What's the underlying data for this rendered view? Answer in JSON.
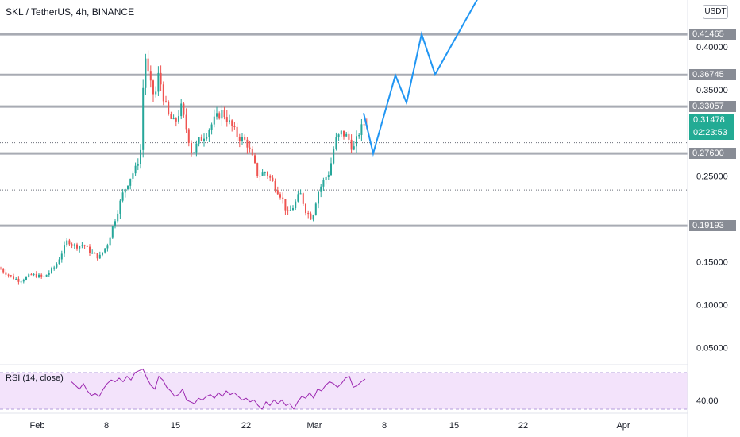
{
  "header": {
    "title": "SKL / TetherUS, 4h, BINANCE",
    "currency": "USDT"
  },
  "rsi": {
    "label": "RSI (14, close)",
    "axis_label": "40.00"
  },
  "last_price": {
    "value": "0.31478",
    "countdown": "02:23:53",
    "color": "#22ab94"
  },
  "colors": {
    "up": "#26a69a",
    "down": "#ef5350",
    "projection": "#2196f3",
    "level": "#a8abb3",
    "rsi_line": "#9c27b0",
    "rsi_band": "#f3e3fb"
  },
  "chart_data": {
    "type": "candlestick",
    "title": "SKL / TetherUS, 4h, BINANCE",
    "x_tick_labels": [
      "Feb",
      "8",
      "15",
      "22",
      "Mar",
      "8",
      "15",
      "22",
      "Apr"
    ],
    "y_tick_labels": [
      "0.05000",
      "0.10000",
      "0.15000",
      "0.25000",
      "0.35000",
      "0.40000"
    ],
    "ylim": [
      0.02,
      0.45
    ],
    "levels": [
      {
        "label": "0.41465",
        "value": 0.41465
      },
      {
        "label": "0.36745",
        "value": 0.36745
      },
      {
        "label": "0.33057",
        "value": 0.33057
      },
      {
        "label": "0.27600",
        "value": 0.276
      },
      {
        "label": "0.19193",
        "value": 0.19193
      }
    ],
    "dotted_levels": [
      0.2885,
      0.2335
    ],
    "price_path": [
      [
        0,
        0.142
      ],
      [
        15,
        0.132
      ],
      [
        25,
        0.128
      ],
      [
        40,
        0.135
      ],
      [
        55,
        0.132
      ],
      [
        70,
        0.145
      ],
      [
        85,
        0.175
      ],
      [
        95,
        0.168
      ],
      [
        105,
        0.17
      ],
      [
        115,
        0.16
      ],
      [
        125,
        0.155
      ],
      [
        135,
        0.17
      ],
      [
        145,
        0.2
      ],
      [
        155,
        0.23
      ],
      [
        165,
        0.25
      ],
      [
        172,
        0.26
      ],
      [
        177,
        0.28
      ],
      [
        180,
        0.35
      ],
      [
        183,
        0.39
      ],
      [
        188,
        0.36
      ],
      [
        195,
        0.34
      ],
      [
        200,
        0.37
      ],
      [
        205,
        0.345
      ],
      [
        212,
        0.32
      ],
      [
        220,
        0.31
      ],
      [
        228,
        0.33
      ],
      [
        236,
        0.3
      ],
      [
        242,
        0.275
      ],
      [
        250,
        0.29
      ],
      [
        260,
        0.3
      ],
      [
        270,
        0.315
      ],
      [
        280,
        0.325
      ],
      [
        290,
        0.31
      ],
      [
        300,
        0.295
      ],
      [
        310,
        0.29
      ],
      [
        318,
        0.27
      ],
      [
        325,
        0.25
      ],
      [
        335,
        0.255
      ],
      [
        345,
        0.24
      ],
      [
        355,
        0.225
      ],
      [
        362,
        0.205
      ],
      [
        370,
        0.215
      ],
      [
        378,
        0.23
      ],
      [
        385,
        0.21
      ],
      [
        393,
        0.2
      ],
      [
        400,
        0.23
      ],
      [
        408,
        0.245
      ],
      [
        415,
        0.255
      ],
      [
        422,
        0.29
      ],
      [
        430,
        0.3
      ],
      [
        438,
        0.295
      ],
      [
        445,
        0.28
      ],
      [
        452,
        0.3
      ],
      [
        458,
        0.31
      ],
      [
        464,
        0.315
      ]
    ],
    "projection_path": [
      [
        458,
        0.323
      ],
      [
        470,
        0.276
      ],
      [
        498,
        0.367
      ],
      [
        512,
        0.335
      ],
      [
        531,
        0.415
      ],
      [
        548,
        0.368
      ],
      [
        604,
        0.46
      ]
    ],
    "rsi": {
      "label": "RSI (14, close)",
      "band_upper": 70,
      "band_lower": 30,
      "axis_value": 40.0,
      "series": [
        [
          90,
          60
        ],
        [
          95,
          56
        ],
        [
          100,
          52
        ],
        [
          105,
          58
        ],
        [
          110,
          50
        ],
        [
          115,
          45
        ],
        [
          120,
          47
        ],
        [
          125,
          44
        ],
        [
          130,
          52
        ],
        [
          135,
          58
        ],
        [
          140,
          62
        ],
        [
          145,
          60
        ],
        [
          150,
          64
        ],
        [
          155,
          60
        ],
        [
          160,
          66
        ],
        [
          165,
          62
        ],
        [
          170,
          70
        ],
        [
          175,
          72
        ],
        [
          180,
          74
        ],
        [
          185,
          64
        ],
        [
          190,
          56
        ],
        [
          195,
          52
        ],
        [
          200,
          66
        ],
        [
          205,
          62
        ],
        [
          210,
          54
        ],
        [
          215,
          50
        ],
        [
          220,
          44
        ],
        [
          225,
          46
        ],
        [
          230,
          52
        ],
        [
          235,
          40
        ],
        [
          240,
          38
        ],
        [
          245,
          36
        ],
        [
          250,
          42
        ],
        [
          255,
          40
        ],
        [
          260,
          44
        ],
        [
          265,
          46
        ],
        [
          270,
          42
        ],
        [
          275,
          48
        ],
        [
          280,
          44
        ],
        [
          285,
          50
        ],
        [
          290,
          46
        ],
        [
          295,
          48
        ],
        [
          300,
          44
        ],
        [
          305,
          40
        ],
        [
          310,
          42
        ],
        [
          315,
          38
        ],
        [
          320,
          40
        ],
        [
          325,
          34
        ],
        [
          330,
          30
        ],
        [
          335,
          38
        ],
        [
          340,
          34
        ],
        [
          345,
          40
        ],
        [
          350,
          36
        ],
        [
          355,
          40
        ],
        [
          360,
          34
        ],
        [
          365,
          36
        ],
        [
          370,
          30
        ],
        [
          375,
          38
        ],
        [
          380,
          44
        ],
        [
          385,
          42
        ],
        [
          390,
          48
        ],
        [
          395,
          42
        ],
        [
          400,
          52
        ],
        [
          405,
          50
        ],
        [
          410,
          56
        ],
        [
          415,
          60
        ],
        [
          420,
          58
        ],
        [
          425,
          54
        ],
        [
          430,
          58
        ],
        [
          435,
          64
        ],
        [
          440,
          66
        ],
        [
          445,
          54
        ],
        [
          450,
          56
        ],
        [
          455,
          60
        ],
        [
          460,
          63
        ]
      ]
    }
  }
}
